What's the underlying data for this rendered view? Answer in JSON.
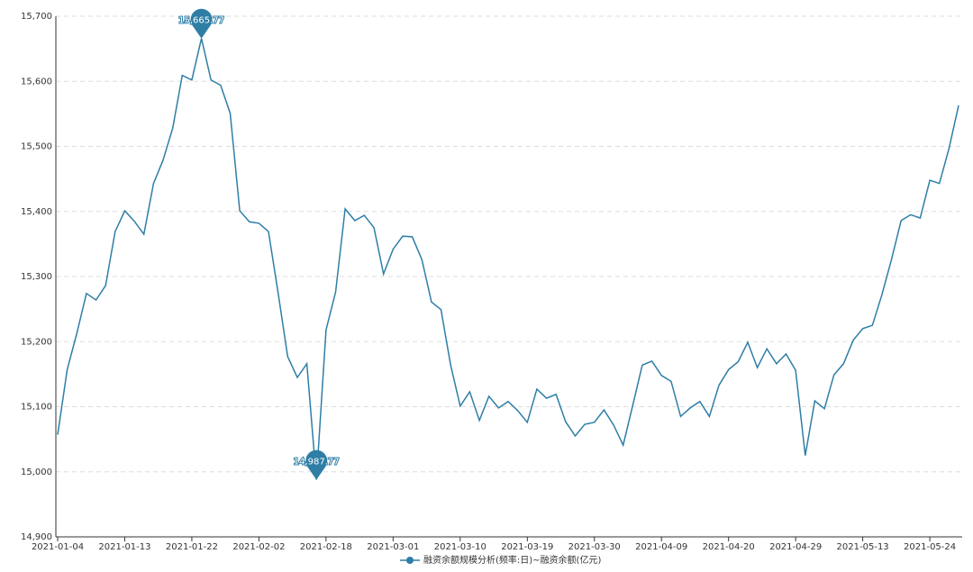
{
  "chart_data": {
    "type": "line",
    "categories": [
      "2021-01-04",
      null,
      null,
      null,
      null,
      null,
      null,
      "2021-01-13",
      null,
      null,
      null,
      null,
      null,
      null,
      "2021-01-22",
      null,
      null,
      null,
      null,
      null,
      null,
      "2021-02-02",
      null,
      null,
      null,
      null,
      null,
      null,
      "2021-02-18",
      null,
      null,
      null,
      null,
      null,
      null,
      "2021-03-01",
      null,
      null,
      null,
      null,
      null,
      null,
      "2021-03-10",
      null,
      null,
      null,
      null,
      null,
      null,
      "2021-03-19",
      null,
      null,
      null,
      null,
      null,
      null,
      "2021-03-30",
      null,
      null,
      null,
      null,
      null,
      null,
      "2021-04-09",
      null,
      null,
      null,
      null,
      null,
      null,
      "2021-04-20",
      null,
      null,
      null,
      null,
      null,
      null,
      "2021-04-29",
      null,
      null,
      null,
      null,
      null,
      null,
      "2021-05-13",
      null,
      null,
      null,
      null,
      null,
      null,
      "2021-05-24",
      null,
      null,
      null
    ],
    "series": [
      {
        "name": "融资余额规模分析(频率:日)~融资余额(亿元)",
        "color": "#2e7ea6",
        "values": [
          15057,
          15157,
          15213,
          15274,
          15264,
          15286,
          15369,
          15401,
          15385,
          15365,
          15443,
          15479,
          15528,
          15609,
          15602,
          15665.77,
          15602,
          15594,
          15551,
          15401,
          15384,
          15382,
          15369,
          15275,
          15177,
          15145,
          15166,
          14987.77,
          15218,
          15276,
          15404,
          15386,
          15394,
          15375,
          15304,
          15342,
          15362,
          15361,
          15326,
          15261,
          15249,
          15164,
          15101,
          15123,
          15079,
          15116,
          15098,
          15108,
          15094,
          15076,
          15127,
          15113,
          15119,
          15077,
          15055,
          15073,
          15076,
          15095,
          15072,
          15041,
          15102,
          15164,
          15170,
          15148,
          15139,
          15085,
          15098,
          15108,
          15085,
          15133,
          15157,
          15169,
          15199,
          15160,
          15189,
          15166,
          15181,
          15156,
          15025,
          15109,
          15097,
          15149,
          15166,
          15202,
          15220,
          15225,
          15272,
          15326,
          15386,
          15395,
          15390,
          15448,
          15443,
          15497,
          15563
        ],
        "value_labels": [
          null,
          null,
          null,
          null,
          null,
          null,
          null,
          null,
          null,
          null,
          null,
          null,
          null,
          null,
          null,
          "15,665.77",
          null,
          null,
          null,
          null,
          null,
          null,
          null,
          null,
          null,
          null,
          null,
          "14,987.77",
          null,
          null,
          null,
          null,
          null,
          null,
          null,
          null,
          null,
          null,
          null,
          null,
          null,
          null,
          null,
          null,
          null,
          null,
          null,
          null,
          null,
          null,
          null,
          null,
          null,
          null,
          null,
          null,
          null,
          null,
          null,
          null,
          null,
          null,
          null,
          null,
          null,
          null,
          null,
          null,
          null,
          null,
          null,
          null,
          null,
          null,
          null,
          null,
          null,
          null,
          null,
          null,
          null,
          null,
          null,
          null,
          null,
          null,
          null,
          null,
          null,
          null,
          null,
          null,
          null,
          null,
          null
        ]
      }
    ],
    "ylim": [
      14900,
      15700
    ],
    "yticks": [
      {
        "value": 14900,
        "label": "14,900"
      },
      {
        "value": 15000,
        "label": "15,000"
      },
      {
        "value": 15100,
        "label": "15,100"
      },
      {
        "value": 15200,
        "label": "15,200"
      },
      {
        "value": 15300,
        "label": "15,300"
      },
      {
        "value": 15400,
        "label": "15,400"
      },
      {
        "value": 15500,
        "label": "15,500"
      },
      {
        "value": 15600,
        "label": "15,600"
      },
      {
        "value": 15700,
        "label": "15,700"
      }
    ],
    "grid": true,
    "legend": "bottom"
  }
}
